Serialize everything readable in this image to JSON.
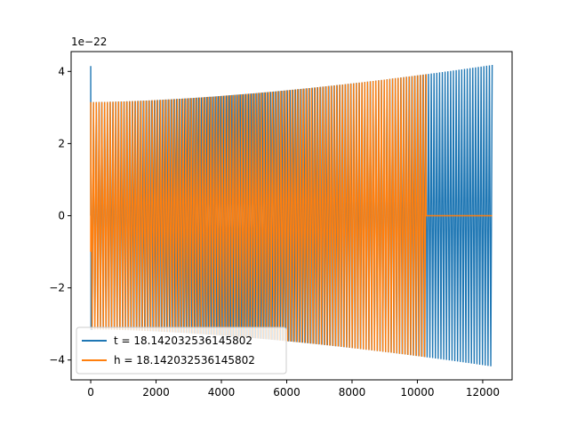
{
  "chart_data": {
    "type": "line",
    "title": "",
    "xlabel": "",
    "ylabel": "",
    "y_scale_label": "1e−22",
    "xlim": [
      -600,
      12900
    ],
    "ylim": [
      -4.55,
      4.55
    ],
    "x_ticks": [
      0,
      2000,
      4000,
      6000,
      8000,
      10000,
      12000
    ],
    "x_tick_labels": [
      "0",
      "2000",
      "4000",
      "6000",
      "8000",
      "10000",
      "12000"
    ],
    "y_ticks": [
      -4,
      -2,
      0,
      2,
      4
    ],
    "y_tick_labels": [
      "−4",
      "−2",
      "0",
      "2",
      "4"
    ],
    "grid": false,
    "legend_position": "lower-left",
    "series": [
      {
        "name": "t = 18.142032536145802",
        "color": "#1f77b4",
        "pattern": "oscillation",
        "x_start": 0,
        "x_end": 12290,
        "envelope_start": 3.15,
        "envelope_end": 4.18,
        "initial_spike": 4.15,
        "approx_cycles": 145
      },
      {
        "name": "h = 18.142032536145802",
        "color": "#ff7f0e",
        "pattern": "oscillation_then_zero",
        "x_start": 0,
        "x_end_oscillation": 10270,
        "x_end": 12290,
        "envelope_start": 3.15,
        "envelope_end": 4.18,
        "approx_cycles": 120
      }
    ]
  }
}
